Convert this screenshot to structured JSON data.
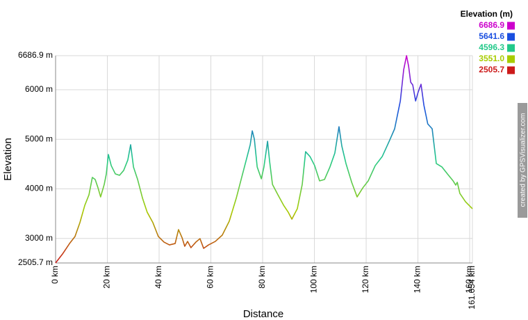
{
  "chart_data": {
    "type": "line",
    "xlabel": "Distance",
    "ylabel": "Elevation",
    "grid": true,
    "watermark": "created by GPSVisualizer.com",
    "xlim": [
      0,
      161.054
    ],
    "ylim": [
      2505.7,
      6686.9
    ],
    "xticks": [
      {
        "value": 0,
        "label": "0 km"
      },
      {
        "value": 20,
        "label": "20 km"
      },
      {
        "value": 40,
        "label": "40 km"
      },
      {
        "value": 60,
        "label": "60 km"
      },
      {
        "value": 80,
        "label": "80 km"
      },
      {
        "value": 100,
        "label": "100 km"
      },
      {
        "value": 120,
        "label": "120 km"
      },
      {
        "value": 140,
        "label": "140 km"
      },
      {
        "value": 160,
        "label": "160 km"
      },
      {
        "value": 161.054,
        "label": "161.054 km"
      }
    ],
    "yticks": [
      {
        "value": 2505.7,
        "label": "2505.7 m"
      },
      {
        "value": 3000,
        "label": "3000 m"
      },
      {
        "value": 4000,
        "label": "4000 m"
      },
      {
        "value": 5000,
        "label": "5000 m"
      },
      {
        "value": 6000,
        "label": "6000 m"
      },
      {
        "value": 6686.9,
        "label": "6686.9 m"
      }
    ],
    "color_scale": {
      "title": "Elevation (m)",
      "stops": [
        {
          "value": 6686.9,
          "label": "6686.9",
          "color": "#cc00cc"
        },
        {
          "value": 5641.6,
          "label": "5641.6",
          "color": "#1a4fe0"
        },
        {
          "value": 4596.3,
          "label": "4596.3",
          "color": "#22c98a"
        },
        {
          "value": 3551.0,
          "label": "3551.0",
          "color": "#a8cc00"
        },
        {
          "value": 2505.7,
          "label": "2505.7",
          "color": "#cc1a1a"
        }
      ]
    },
    "x": [
      0,
      2.7,
      5.4,
      7.5,
      9.4,
      11.3,
      12.9,
      14.2,
      15.3,
      16.4,
      17.4,
      18.8,
      19.6,
      20.4,
      21.5,
      23.1,
      24.7,
      26.3,
      27.9,
      29.0,
      30.1,
      31.7,
      33.6,
      35.4,
      37.6,
      39.7,
      41.9,
      44.0,
      46.2,
      47.5,
      48.9,
      49.9,
      51.0,
      52.3,
      54.2,
      55.8,
      57.2,
      59.1,
      61.7,
      64.4,
      67.1,
      69.8,
      71.9,
      73.8,
      75.2,
      76.0,
      76.8,
      77.9,
      79.5,
      80.5,
      81.9,
      82.7,
      83.8,
      85.9,
      88.1,
      89.9,
      91.3,
      93.4,
      95.3,
      96.6,
      98.3,
      100.1,
      102.0,
      103.9,
      106.0,
      107.9,
      109.5,
      110.6,
      112.2,
      114.4,
      116.5,
      118.7,
      120.8,
      123.5,
      126.2,
      128.9,
      131.0,
      133.2,
      134.5,
      135.6,
      136.4,
      137.2,
      138.0,
      139.1,
      140.1,
      141.2,
      142.3,
      143.8,
      145.5,
      147.1,
      149.3,
      151.4,
      153.6,
      154.6,
      155.2,
      156.2,
      158.4,
      161.054
    ],
    "values": [
      2506,
      2688,
      2898,
      3039,
      3319,
      3670,
      3880,
      4231,
      4189,
      4020,
      3838,
      4090,
      4301,
      4694,
      4469,
      4301,
      4273,
      4371,
      4581,
      4890,
      4441,
      4189,
      3810,
      3529,
      3319,
      3039,
      2926,
      2870,
      2898,
      3179,
      3011,
      2842,
      2940,
      2814,
      2926,
      2996,
      2800,
      2870,
      2940,
      3067,
      3347,
      3810,
      4231,
      4610,
      4890,
      5170,
      5002,
      4441,
      4203,
      4441,
      4960,
      4553,
      4090,
      3880,
      3670,
      3529,
      3389,
      3600,
      4090,
      4750,
      4652,
      4469,
      4161,
      4189,
      4441,
      4722,
      5254,
      4862,
      4511,
      4133,
      3838,
      4020,
      4161,
      4469,
      4652,
      4960,
      5212,
      5773,
      6404,
      6686.9,
      6474,
      6152,
      6096,
      5773,
      5955,
      6110,
      5689,
      5310,
      5212,
      4511,
      4441,
      4301,
      4161,
      4076,
      4133,
      3908,
      3740,
      3600
    ]
  }
}
